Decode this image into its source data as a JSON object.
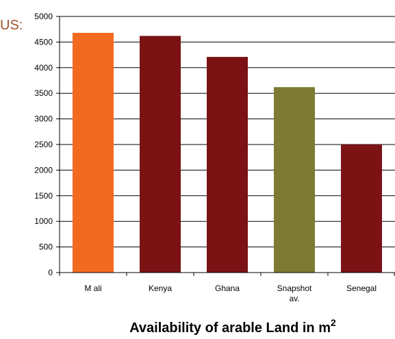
{
  "corner_text": "US:",
  "chart_data": {
    "type": "bar",
    "title": "Availability of arable Land in m",
    "title_superscript": "2",
    "xlabel": "",
    "ylabel": "",
    "categories": [
      {
        "label": "Mali",
        "lines": [
          "M ali"
        ]
      },
      {
        "label": "Kenya",
        "lines": [
          "Kenya"
        ]
      },
      {
        "label": "Ghana",
        "lines": [
          "Ghana"
        ]
      },
      {
        "label": "Snapshot av.",
        "lines": [
          "Snapshot",
          "av."
        ]
      },
      {
        "label": "Senegal",
        "lines": [
          "Senegal"
        ]
      }
    ],
    "values": [
      4680,
      4620,
      4210,
      3620,
      2500
    ],
    "colors": [
      "#f26a21",
      "#7b1214",
      "#7b1214",
      "#7d7a33",
      "#7b1214"
    ],
    "ylim": [
      0,
      5000
    ],
    "yticks": [
      0,
      500,
      1000,
      1500,
      2000,
      2500,
      3000,
      3500,
      4000,
      4500,
      5000
    ],
    "ytick_labels": [
      "0",
      "500",
      "1000",
      "1500",
      "2000",
      "2500",
      "3000",
      "3500",
      "4000",
      "4500",
      "5000"
    ],
    "grid": true,
    "legend": "none"
  }
}
